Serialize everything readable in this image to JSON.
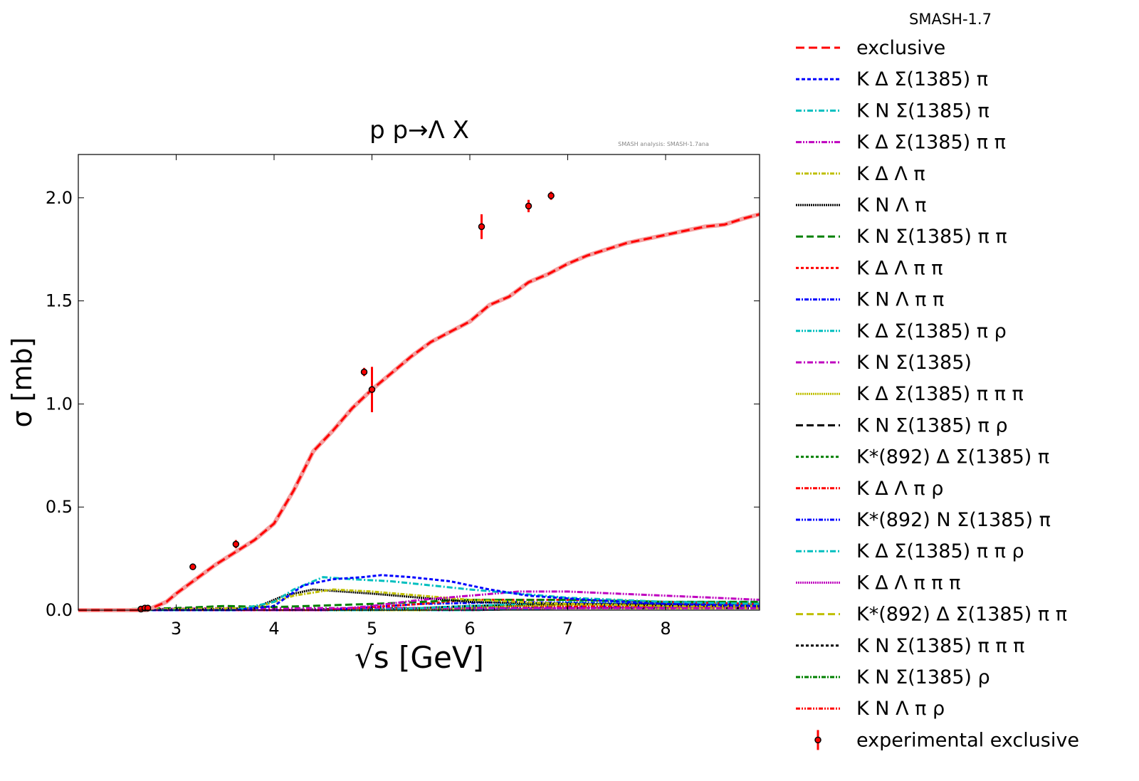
{
  "chart_data": {
    "type": "line",
    "title": "p p→Λ X",
    "watermark": "SMASH analysis: SMASH-1.7ana",
    "xlabel": "√s [GeV]",
    "ylabel": "σ [mb]",
    "xlim": [
      2.0,
      8.96
    ],
    "ylim": [
      0,
      2.21
    ],
    "xticks": [
      3,
      4,
      5,
      6,
      7,
      8
    ],
    "yticks": [
      0.0,
      0.5,
      1.0,
      1.5,
      2.0
    ],
    "ytick_labels": [
      "0.0",
      "0.5",
      "1.0",
      "1.5",
      "2.0"
    ],
    "legend_title": "SMASH-1.7",
    "legend_placement": "outside-right",
    "series": [
      {
        "name": "exclusive",
        "color": "#ff0000",
        "dash": "12,6",
        "x": [
          2.0,
          2.7,
          2.9,
          3.0,
          3.2,
          3.4,
          3.6,
          3.8,
          4.0,
          4.2,
          4.4,
          4.6,
          4.8,
          5.0,
          5.2,
          5.4,
          5.6,
          5.8,
          6.0,
          6.2,
          6.4,
          6.6,
          6.8,
          7.0,
          7.2,
          7.4,
          7.6,
          7.8,
          8.0,
          8.2,
          8.4,
          8.6,
          8.8,
          8.96
        ],
        "y": [
          0,
          0,
          0.04,
          0.08,
          0.15,
          0.22,
          0.28,
          0.34,
          0.42,
          0.58,
          0.77,
          0.87,
          0.98,
          1.07,
          1.15,
          1.23,
          1.3,
          1.35,
          1.4,
          1.48,
          1.52,
          1.59,
          1.63,
          1.68,
          1.72,
          1.75,
          1.78,
          1.8,
          1.82,
          1.84,
          1.86,
          1.87,
          1.9,
          1.92
        ]
      },
      {
        "name": "K Δ Σ(1385) π",
        "color": "#0000ff",
        "dash": "5,3",
        "x": [
          2.0,
          3.6,
          4.0,
          4.3,
          4.6,
          4.9,
          5.1,
          5.4,
          5.8,
          6.2,
          6.6,
          7.2,
          8.0,
          8.96
        ],
        "y": [
          0,
          0,
          0.02,
          0.12,
          0.15,
          0.16,
          0.17,
          0.16,
          0.14,
          0.1,
          0.07,
          0.05,
          0.03,
          0.02
        ]
      },
      {
        "name": "K N Σ(1385) π",
        "color": "#00bfbf",
        "dash": "8,3,2,3",
        "x": [
          2.0,
          3.6,
          4.0,
          4.2,
          4.5,
          4.8,
          5.2,
          5.6,
          6.0,
          6.5,
          7.0,
          8.0,
          8.96
        ],
        "y": [
          0,
          0,
          0.04,
          0.1,
          0.16,
          0.15,
          0.14,
          0.12,
          0.1,
          0.08,
          0.06,
          0.04,
          0.03
        ]
      },
      {
        "name": "K Δ Σ(1385) π π",
        "color": "#bf00bf",
        "dash": "8,2,2,2,2,2",
        "x": [
          2.0,
          4.5,
          5.0,
          5.5,
          6.0,
          6.5,
          7.0,
          7.5,
          8.0,
          8.5,
          8.96
        ],
        "y": [
          0,
          0,
          0.02,
          0.05,
          0.07,
          0.09,
          0.09,
          0.08,
          0.07,
          0.06,
          0.05
        ]
      },
      {
        "name": "K Δ Λ π",
        "color": "#bfbf00",
        "dash": "6,2,2,2",
        "x": [
          2.0,
          3.0,
          3.8,
          4.2,
          4.6,
          5.0,
          5.5,
          6.0,
          6.5,
          7.0,
          8.0,
          8.96
        ],
        "y": [
          0,
          0.005,
          0.01,
          0.07,
          0.1,
          0.09,
          0.07,
          0.05,
          0.04,
          0.03,
          0.02,
          0.02
        ]
      },
      {
        "name": "K N Λ π",
        "color": "#000000",
        "dash": "2,1",
        "x": [
          2.0,
          3.4,
          3.8,
          4.1,
          4.4,
          4.7,
          5.0,
          5.5,
          6.0,
          7.0,
          8.96
        ],
        "y": [
          0,
          0.005,
          0.01,
          0.07,
          0.1,
          0.09,
          0.08,
          0.06,
          0.04,
          0.03,
          0.02
        ]
      },
      {
        "name": "K N Σ(1385) π π",
        "color": "#008000",
        "dash": "10,5",
        "x": [
          2.0,
          3.0,
          3.5,
          4.0,
          5.0,
          6.0,
          7.0,
          8.0,
          8.96
        ],
        "y": [
          0,
          0.01,
          0.02,
          0.015,
          0.03,
          0.05,
          0.05,
          0.04,
          0.04
        ]
      },
      {
        "name": "K Δ Λ π π",
        "color": "#ff0000",
        "dash": "4,3",
        "x": [
          2.0,
          4.5,
          5.5,
          6.0,
          7.0,
          8.0,
          8.96
        ],
        "y": [
          0,
          0,
          0.03,
          0.05,
          0.05,
          0.04,
          0.03
        ]
      },
      {
        "name": "K N Λ π π",
        "color": "#0000ff",
        "dash": "6,2,2,2",
        "x": [
          2.0,
          4.5,
          5.5,
          6.5,
          7.5,
          8.96
        ],
        "y": [
          0,
          0,
          0.03,
          0.04,
          0.03,
          0.03
        ]
      },
      {
        "name": "K Δ Σ(1385) π ρ",
        "color": "#00bfbf",
        "dash": "6,2,2,2,2,2",
        "x": [
          2.0,
          5.0,
          6.0,
          7.0,
          8.0,
          8.96
        ],
        "y": [
          0,
          0,
          0.02,
          0.04,
          0.04,
          0.04
        ]
      },
      {
        "name": "K N Σ(1385)",
        "color": "#bf00bf",
        "dash": "8,3,2,3",
        "x": [
          2.0,
          2.7,
          3.5,
          4.5,
          6.0,
          8.96
        ],
        "y": [
          0,
          0.005,
          0.01,
          0.01,
          0.01,
          0.01
        ]
      },
      {
        "name": "K Δ Σ(1385) π π π",
        "color": "#bfbf00",
        "dash": "2,1",
        "x": [
          2.0,
          5.5,
          6.5,
          7.5,
          8.96
        ],
        "y": [
          0,
          0,
          0.02,
          0.03,
          0.03
        ]
      },
      {
        "name": "K N Σ(1385) π ρ",
        "color": "#000000",
        "dash": "10,5",
        "x": [
          2.0,
          5.0,
          6.0,
          7.0,
          8.96
        ],
        "y": [
          0,
          0,
          0.02,
          0.03,
          0.02
        ]
      },
      {
        "name": "K*(892) Δ Σ(1385) π",
        "color": "#008000",
        "dash": "4,3",
        "x": [
          2.0,
          5.0,
          6.0,
          7.0,
          8.96
        ],
        "y": [
          0,
          0,
          0.02,
          0.03,
          0.03
        ]
      },
      {
        "name": "K Δ Λ π ρ",
        "color": "#ff0000",
        "dash": "6,2,2,2",
        "x": [
          2.0,
          5.0,
          6.0,
          7.0,
          8.96
        ],
        "y": [
          0,
          0,
          0.02,
          0.02,
          0.02
        ]
      },
      {
        "name": "K*(892) N Σ(1385) π",
        "color": "#0000ff",
        "dash": "6,2,2,2,2,2",
        "x": [
          2.0,
          5.0,
          6.0,
          7.0,
          8.96
        ],
        "y": [
          0,
          0,
          0.01,
          0.02,
          0.02
        ]
      },
      {
        "name": "K Δ Σ(1385) π π ρ",
        "color": "#00bfbf",
        "dash": "8,3,2,3",
        "x": [
          2.0,
          6.0,
          7.0,
          8.96
        ],
        "y": [
          0,
          0,
          0.01,
          0.02
        ]
      },
      {
        "name": "K Δ Λ π π π",
        "color": "#bf00bf",
        "dash": "2,1",
        "x": [
          2.0,
          6.0,
          7.0,
          8.96
        ],
        "y": [
          0,
          0,
          0.01,
          0.02
        ]
      },
      {
        "name": "K*(892) Δ Σ(1385) π π",
        "color": "#bfbf00",
        "dash": "10,5",
        "x": [
          2.0,
          6.0,
          7.0,
          8.96
        ],
        "y": [
          0,
          0,
          0.01,
          0.01
        ]
      },
      {
        "name": "K N Σ(1385) π π π",
        "color": "#000000",
        "dash": "4,3",
        "x": [
          2.0,
          6.0,
          7.0,
          8.96
        ],
        "y": [
          0,
          0,
          0.01,
          0.01
        ]
      },
      {
        "name": "K N Σ(1385) ρ",
        "color": "#008000",
        "dash": "6,2,2,2",
        "x": [
          2.0,
          4.0,
          5.0,
          6.0,
          8.96
        ],
        "y": [
          0,
          0,
          0.01,
          0.01,
          0.01
        ]
      },
      {
        "name": "K N Λ π ρ",
        "color": "#ff0000",
        "dash": "6,2,2,2,2,2",
        "x": [
          2.0,
          4.5,
          5.5,
          7.0,
          8.96
        ],
        "y": [
          0,
          0,
          0.01,
          0.01,
          0.01
        ]
      }
    ],
    "experimental": {
      "name": "experimental exclusive",
      "color": "#ff0000",
      "x": [
        2.64,
        2.68,
        2.71,
        3.17,
        3.61,
        4.92,
        5.0,
        6.12,
        6.6,
        6.83
      ],
      "y": [
        0.005,
        0.01,
        0.01,
        0.21,
        0.32,
        1.155,
        1.07,
        1.86,
        1.96,
        2.01
      ],
      "err": [
        0.005,
        0.005,
        0.005,
        0.01,
        0.02,
        0.02,
        0.11,
        0.06,
        0.03,
        0.02
      ]
    }
  }
}
